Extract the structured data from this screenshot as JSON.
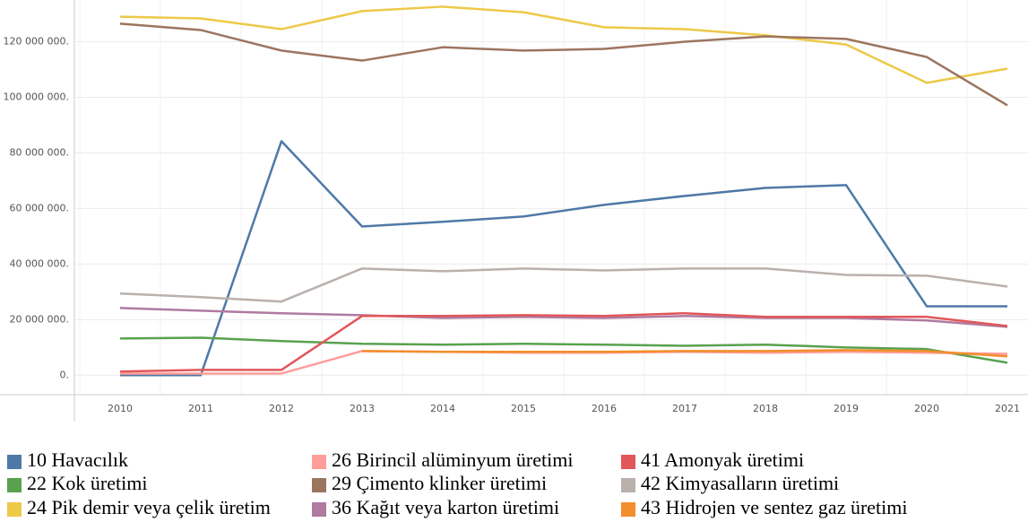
{
  "chart_data": {
    "type": "line",
    "categories": [
      "2010",
      "2011",
      "2012",
      "2013",
      "2014",
      "2015",
      "2016",
      "2017",
      "2018",
      "2019",
      "2020",
      "2021"
    ],
    "ylim": [
      -7000000,
      135000000
    ],
    "yticks": [
      {
        "value": 0,
        "label": "0."
      },
      {
        "value": 20000000,
        "label": "20 000 000."
      },
      {
        "value": 40000000,
        "label": "40 000 000."
      },
      {
        "value": 60000000,
        "label": "60 000 000."
      },
      {
        "value": 80000000,
        "label": "80 000 000."
      },
      {
        "value": 100000000,
        "label": "100 000 000."
      },
      {
        "value": 120000000,
        "label": "120 000 000."
      }
    ],
    "grid": true,
    "series": [
      {
        "name": "10 Havacılık",
        "color": "#4e79a7",
        "values": [
          0,
          0,
          84200000,
          53500000,
          55200000,
          57100000,
          61300000,
          64500000,
          67400000,
          68400000,
          24800000,
          24800000
        ]
      },
      {
        "name": "22 Kok üretimi",
        "color": "#59a14f",
        "values": [
          13200000,
          13500000,
          12300000,
          11300000,
          11000000,
          11300000,
          11000000,
          10600000,
          11000000,
          10000000,
          9400000,
          4500000
        ]
      },
      {
        "name": "24 Pik demir veya çelik üretim",
        "color": "#edc948",
        "values": [
          129000000,
          128400000,
          124500000,
          131000000,
          132600000,
          130600000,
          125200000,
          124500000,
          122300000,
          119000000,
          105200000,
          110300000
        ]
      },
      {
        "name": "26 Birincil alüminyum üretimi",
        "color": "#ff9d9a",
        "values": [
          600000,
          600000,
          600000,
          8700000,
          8400000,
          8100000,
          8100000,
          8400000,
          8100000,
          8400000,
          8100000,
          7700000
        ]
      },
      {
        "name": "29 Çimento klinker üretimi",
        "color": "#9c755f",
        "values": [
          126500000,
          124200000,
          116800000,
          113200000,
          118000000,
          116800000,
          117400000,
          120000000,
          121900000,
          121000000,
          114500000,
          97100000
        ]
      },
      {
        "name": "36 Kağıt veya karton üretimi",
        "color": "#b07aa1",
        "values": [
          24200000,
          23200000,
          22300000,
          21600000,
          20600000,
          21000000,
          20600000,
          21300000,
          20600000,
          20600000,
          19700000,
          17400000
        ]
      },
      {
        "name": "41 Amonyak üretimi",
        "color": "#e15759",
        "values": [
          1300000,
          1900000,
          1900000,
          21300000,
          21300000,
          21600000,
          21300000,
          22300000,
          21000000,
          21000000,
          21000000,
          17700000
        ]
      },
      {
        "name": "42 Kimyasalların üretimi",
        "color": "#bab0ac",
        "values": [
          29400000,
          28100000,
          26500000,
          38400000,
          37400000,
          38400000,
          37700000,
          38400000,
          38400000,
          36100000,
          35800000,
          31900000
        ]
      },
      {
        "name": "43 Hidrojen ve sentez gaz üretimi",
        "color": "#f28e2b",
        "values": [
          null,
          null,
          null,
          8700000,
          8400000,
          8400000,
          8400000,
          8700000,
          8700000,
          9000000,
          8700000,
          6800000
        ]
      }
    ]
  }
}
